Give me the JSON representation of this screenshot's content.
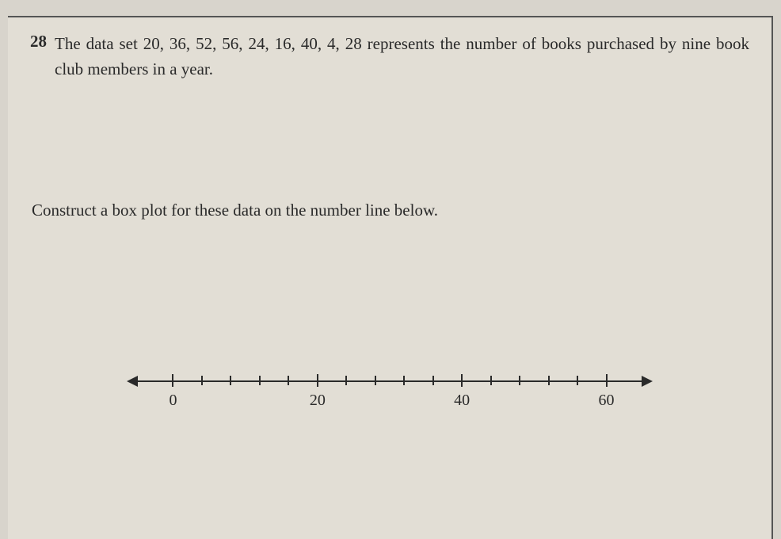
{
  "question": {
    "number": "28",
    "text": "The data set 20, 36, 52, 56, 24, 16, 40, 4, 28 represents the number of books purchased by nine book club members in a year."
  },
  "instruction": "Construct a box plot for these data on the number line below.",
  "numberline": {
    "min": -4,
    "max": 64,
    "major_step": 20,
    "minor_step": 4,
    "labels": [
      {
        "value": 0,
        "text": "0"
      },
      {
        "value": 20,
        "text": "20"
      },
      {
        "value": 40,
        "text": "40"
      },
      {
        "value": 60,
        "text": "60"
      }
    ],
    "axis_color": "#2a2a2a",
    "label_fontsize": 20
  },
  "background_color": "#e2ded5"
}
